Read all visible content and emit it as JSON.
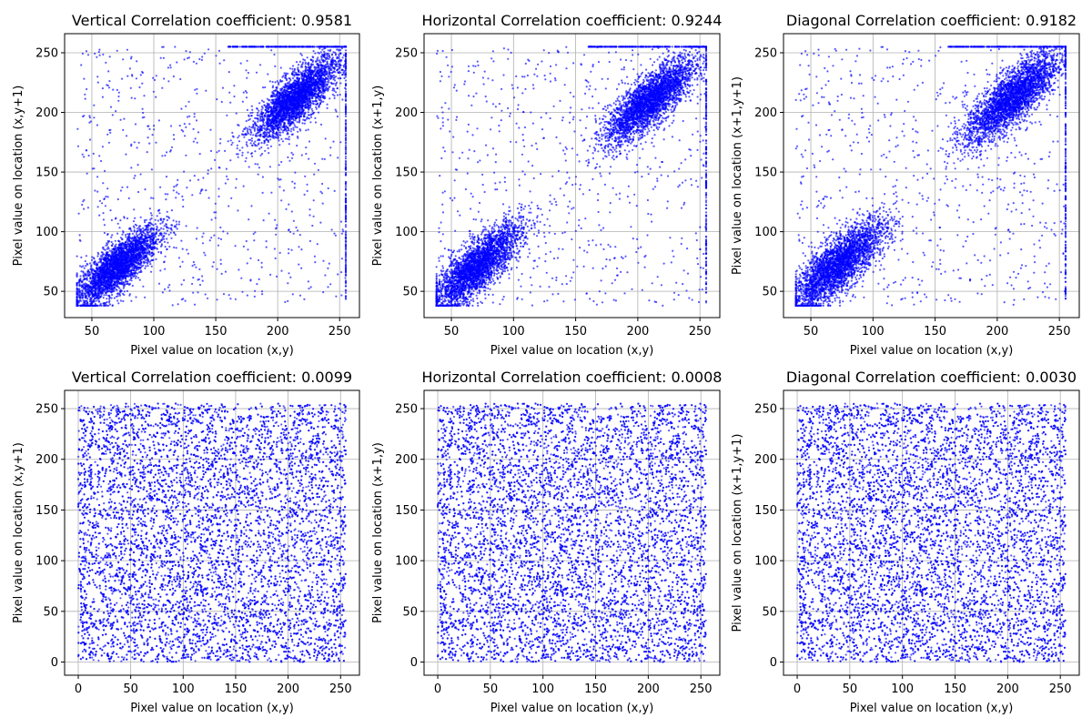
{
  "chart_data": [
    {
      "type": "scatter",
      "title": "Vertical Correlation coefficient: 0.9581",
      "xlabel": "Pixel value on location (x,y)",
      "ylabel": "Pixel value on location (x,y+1)",
      "xlim": [
        28,
        266
      ],
      "ylim": [
        28,
        266
      ],
      "xticks": [
        50,
        100,
        150,
        200,
        250
      ],
      "yticks": [
        50,
        100,
        150,
        200,
        250
      ],
      "grid": true,
      "color": "#0000ff",
      "clusters": [
        {
          "center": [
            70,
            70
          ],
          "spread": 17,
          "count": 3000
        },
        {
          "center": [
            215,
            212
          ],
          "spread": 17,
          "count": 3000
        }
      ]
    },
    {
      "type": "scatter",
      "title": "Horizontal Correlation coefficient: 0.9244",
      "xlabel": "Pixel value on location (x,y)",
      "ylabel": "Pixel value on location (x+1,y)",
      "xlim": [
        28,
        266
      ],
      "ylim": [
        28,
        266
      ],
      "xticks": [
        50,
        100,
        150,
        200,
        250
      ],
      "yticks": [
        50,
        100,
        150,
        200,
        250
      ],
      "grid": true,
      "color": "#0000ff",
      "clusters": [
        {
          "center": [
            70,
            70
          ],
          "spread": 18,
          "count": 3000
        },
        {
          "center": [
            210,
            210
          ],
          "spread": 18,
          "count": 3000
        }
      ]
    },
    {
      "type": "scatter",
      "title": "Diagonal Correlation coefficient: 0.9182",
      "xlabel": "Pixel value on location (x,y)",
      "ylabel": "Pixel value on location (x+1,y+1)",
      "xlim": [
        28,
        266
      ],
      "ylim": [
        28,
        266
      ],
      "xticks": [
        50,
        100,
        150,
        200,
        250
      ],
      "yticks": [
        50,
        100,
        150,
        200,
        250
      ],
      "grid": true,
      "color": "#0000ff",
      "clusters": [
        {
          "center": [
            72,
            72
          ],
          "spread": 19,
          "count": 3000
        },
        {
          "center": [
            212,
            212
          ],
          "spread": 19,
          "count": 3000
        }
      ]
    },
    {
      "type": "scatter",
      "title": "Vertical Correlation coefficient: 0.0099",
      "xlabel": "Pixel value on location (x,y)",
      "ylabel": "Pixel value on location (x,y+1)",
      "xlim": [
        -13,
        268
      ],
      "ylim": [
        -13,
        268
      ],
      "xticks": [
        0,
        50,
        100,
        150,
        200,
        250
      ],
      "yticks": [
        0,
        50,
        100,
        150,
        200,
        250
      ],
      "grid": true,
      "color": "#0000ff",
      "uniform": {
        "range": [
          0,
          255
        ],
        "count": 9000
      }
    },
    {
      "type": "scatter",
      "title": "Horizontal Correlation coefficient: 0.0008",
      "xlabel": "Pixel value on location (x,y)",
      "ylabel": "Pixel value on location (x+1,y)",
      "xlim": [
        -13,
        268
      ],
      "ylim": [
        -13,
        268
      ],
      "xticks": [
        0,
        50,
        100,
        150,
        200,
        250
      ],
      "yticks": [
        0,
        50,
        100,
        150,
        200,
        250
      ],
      "grid": true,
      "color": "#0000ff",
      "uniform": {
        "range": [
          0,
          255
        ],
        "count": 9000
      }
    },
    {
      "type": "scatter",
      "title": "Diagonal Correlation coefficient: 0.0030",
      "xlabel": "Pixel value on location (x,y)",
      "ylabel": "Pixel value on location (x+1,y+1)",
      "xlim": [
        -13,
        268
      ],
      "ylim": [
        -13,
        268
      ],
      "xticks": [
        0,
        50,
        100,
        150,
        200,
        250
      ],
      "yticks": [
        0,
        50,
        100,
        150,
        200,
        250
      ],
      "grid": true,
      "color": "#0000ff",
      "uniform": {
        "range": [
          0,
          255
        ],
        "count": 9000
      }
    }
  ]
}
